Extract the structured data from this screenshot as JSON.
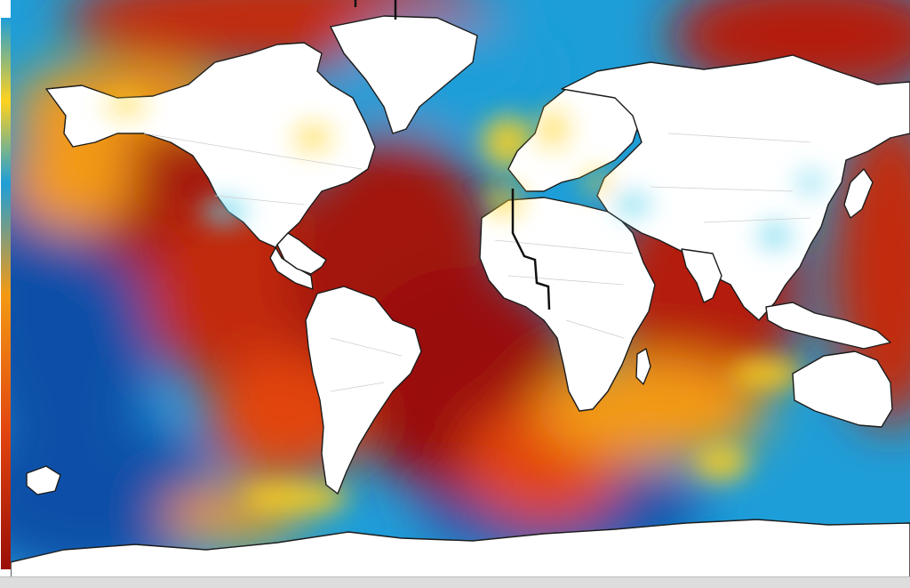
{
  "map": {
    "type": "global-sea-surface-anomaly-heatmap",
    "projection": "equirectangular",
    "land_color": "#ffffff",
    "coastline_color": "#1b1b1b",
    "border_color": "#cfcfcf",
    "colors": {
      "cold_deep": "#0a4fa8",
      "cold": "#1e9ed8",
      "cool": "#5ed3ee",
      "neutral": "#ffd21e",
      "warm": "#f39a14",
      "hot": "#e2450f",
      "hot_deep": "#9a0e07"
    },
    "legend_colors": [
      "#9a0e07",
      "#e2450f",
      "#f39a14",
      "#ffd21e",
      "#5ed3ee",
      "#1e9ed8",
      "#0a4fa8"
    ],
    "features": [
      "north-america",
      "south-america",
      "greenland",
      "africa",
      "europe",
      "eurasia",
      "australia",
      "antarctica",
      "ocean-heat-field"
    ]
  }
}
